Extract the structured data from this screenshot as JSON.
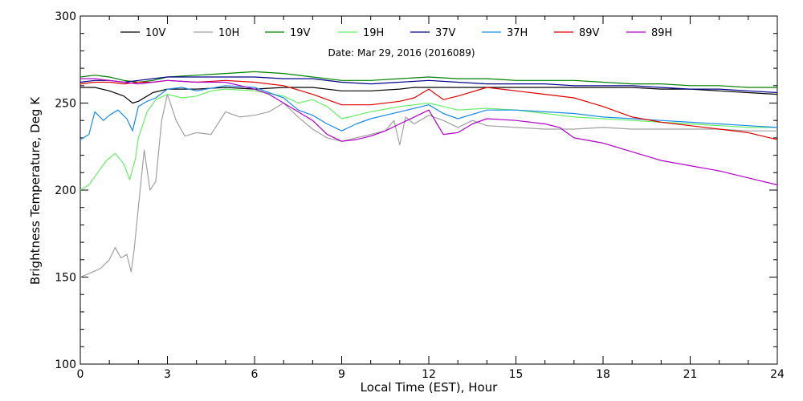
{
  "colors": {
    "10V": "#000000",
    "10H": "#a0a0a0",
    "19V": "#008000",
    "19H": "#66ee66",
    "37V": "#00008b",
    "37H": "#1a8ae6",
    "89V": "#dd0000",
    "89H": "#b000c8"
  },
  "chart_data": {
    "type": "line",
    "title": "Date: Mar 29, 2016 (2016089)",
    "xlabel": "Local Time (EST), Hour",
    "ylabel": "Brightness Temperature, Deg K",
    "xlim": [
      0,
      24
    ],
    "ylim": [
      100,
      300
    ],
    "x_ticks": [
      0,
      3,
      6,
      9,
      12,
      15,
      18,
      21,
      24
    ],
    "x_tick_labels": [
      "0",
      "3",
      "6",
      "9",
      "12",
      "15",
      "18",
      "21",
      "24"
    ],
    "y_ticks": [
      100,
      150,
      200,
      250,
      300
    ],
    "y_tick_labels": [
      "100",
      "150",
      "200",
      "250",
      "300"
    ],
    "grid": false,
    "legend_position": "top",
    "series": [
      {
        "name": "10V",
        "x": [
          0,
          0.5,
          1,
          1.5,
          1.8,
          2,
          2.5,
          3,
          4,
          5,
          6,
          7,
          8,
          9,
          10,
          11,
          11.5,
          12,
          13,
          14,
          15,
          16,
          17,
          18,
          19,
          20,
          21,
          22,
          23,
          24
        ],
        "y": [
          259,
          259,
          257,
          254,
          250,
          251,
          256,
          258,
          258,
          259,
          258,
          259,
          259,
          257,
          257,
          258,
          259,
          259,
          259,
          259,
          259,
          259,
          259,
          259,
          259,
          258,
          258,
          257,
          256,
          255
        ]
      },
      {
        "name": "10H",
        "x": [
          0,
          0.3,
          0.7,
          1,
          1.2,
          1.4,
          1.6,
          1.75,
          1.85,
          2,
          2.2,
          2.4,
          2.6,
          2.8,
          3,
          3.3,
          3.6,
          4,
          4.5,
          5,
          5.5,
          6,
          6.5,
          7,
          7.5,
          8,
          8.5,
          9,
          9.5,
          10,
          10.5,
          10.8,
          11,
          11.2,
          11.5,
          12,
          12.5,
          13,
          13.5,
          14,
          15,
          16,
          17,
          18,
          19,
          20,
          21,
          22,
          23,
          24
        ],
        "y": [
          150,
          152,
          155,
          160,
          167,
          161,
          163,
          153,
          165,
          190,
          223,
          200,
          205,
          240,
          255,
          240,
          231,
          233,
          232,
          245,
          242,
          243,
          245,
          250,
          242,
          235,
          230,
          228,
          230,
          232,
          234,
          240,
          226,
          242,
          238,
          243,
          240,
          236,
          240,
          237,
          236,
          235,
          235,
          236,
          235,
          235,
          235,
          235,
          234,
          234
        ]
      },
      {
        "name": "19V",
        "x": [
          0,
          0.5,
          1,
          1.5,
          2,
          2.5,
          3,
          4,
          5,
          6,
          7,
          8,
          9,
          10,
          11,
          12,
          13,
          14,
          15,
          16,
          17,
          18,
          19,
          20,
          21,
          22,
          23,
          24
        ],
        "y": [
          265,
          266,
          265,
          263,
          262,
          263,
          265,
          266,
          267,
          268,
          267,
          265,
          263,
          263,
          264,
          265,
          264,
          264,
          263,
          263,
          263,
          262,
          261,
          261,
          260,
          260,
          259,
          259
        ]
      },
      {
        "name": "19H",
        "x": [
          0,
          0.3,
          0.6,
          0.9,
          1.2,
          1.5,
          1.7,
          1.9,
          2,
          2.3,
          2.6,
          3,
          3.5,
          4,
          4.5,
          5,
          6,
          7,
          7.5,
          8,
          8.5,
          9,
          9.5,
          10,
          11,
          12,
          12.5,
          13,
          14,
          15,
          16,
          17,
          18,
          19,
          20,
          21,
          22,
          23,
          24
        ],
        "y": [
          200,
          203,
          210,
          217,
          221,
          215,
          206,
          218,
          230,
          245,
          252,
          255,
          253,
          254,
          257,
          258,
          257,
          254,
          250,
          252,
          248,
          241,
          243,
          245,
          248,
          250,
          248,
          246,
          247,
          246,
          244,
          242,
          241,
          240,
          239,
          238,
          237,
          236,
          236
        ]
      },
      {
        "name": "37V",
        "x": [
          0,
          0.5,
          1,
          1.5,
          2,
          2.5,
          3,
          4,
          5,
          6,
          7,
          8,
          9,
          10,
          11,
          12,
          13,
          14,
          15,
          16,
          17,
          18,
          19,
          20,
          21,
          22,
          23,
          24
        ],
        "y": [
          262,
          263,
          263,
          262,
          263,
          264,
          265,
          265,
          265,
          265,
          264,
          264,
          262,
          261,
          262,
          263,
          262,
          261,
          261,
          261,
          260,
          260,
          260,
          259,
          258,
          258,
          257,
          256
        ]
      },
      {
        "name": "37H",
        "x": [
          0,
          0.3,
          0.5,
          0.8,
          1,
          1.3,
          1.6,
          1.8,
          2,
          2.3,
          2.6,
          3,
          3.5,
          4,
          5,
          6,
          7,
          7.5,
          8,
          8.5,
          9,
          9.5,
          10,
          11,
          12,
          12.5,
          13,
          14,
          15,
          16,
          17,
          18,
          19,
          20,
          21,
          22,
          23,
          24
        ],
        "y": [
          229,
          232,
          245,
          240,
          243,
          246,
          241,
          234,
          248,
          251,
          253,
          258,
          259,
          257,
          260,
          259,
          253,
          246,
          243,
          238,
          234,
          238,
          241,
          245,
          249,
          244,
          241,
          246,
          246,
          245,
          244,
          242,
          241,
          240,
          239,
          238,
          237,
          236
        ]
      },
      {
        "name": "89V",
        "x": [
          0,
          0.5,
          1,
          1.5,
          2,
          2.5,
          3,
          4,
          5,
          6,
          7,
          8,
          9,
          10,
          11,
          11.5,
          12,
          12.5,
          13,
          14,
          15,
          16,
          17,
          18,
          19,
          20,
          21,
          22,
          23,
          24
        ],
        "y": [
          261,
          262,
          262,
          261,
          262,
          262,
          263,
          262,
          263,
          262,
          260,
          255,
          249,
          249,
          251,
          253,
          258,
          252,
          254,
          259,
          257,
          255,
          253,
          248,
          242,
          239,
          237,
          235,
          233,
          229
        ]
      },
      {
        "name": "89H",
        "x": [
          0,
          0.5,
          1,
          1.5,
          2,
          2.5,
          3,
          4,
          5,
          6,
          6.5,
          7,
          7.5,
          8,
          8.5,
          9,
          9.5,
          10,
          10.5,
          11,
          11.5,
          12,
          12.5,
          13,
          13.5,
          14,
          15,
          16,
          16.5,
          17,
          18,
          19,
          20,
          21,
          22,
          23,
          24
        ],
        "y": [
          264,
          264,
          263,
          262,
          261,
          262,
          263,
          262,
          262,
          258,
          255,
          250,
          245,
          240,
          232,
          228,
          229,
          231,
          234,
          238,
          242,
          246,
          232,
          233,
          238,
          241,
          240,
          238,
          236,
          230,
          227,
          222,
          217,
          214,
          211,
          207,
          203
        ]
      }
    ]
  }
}
